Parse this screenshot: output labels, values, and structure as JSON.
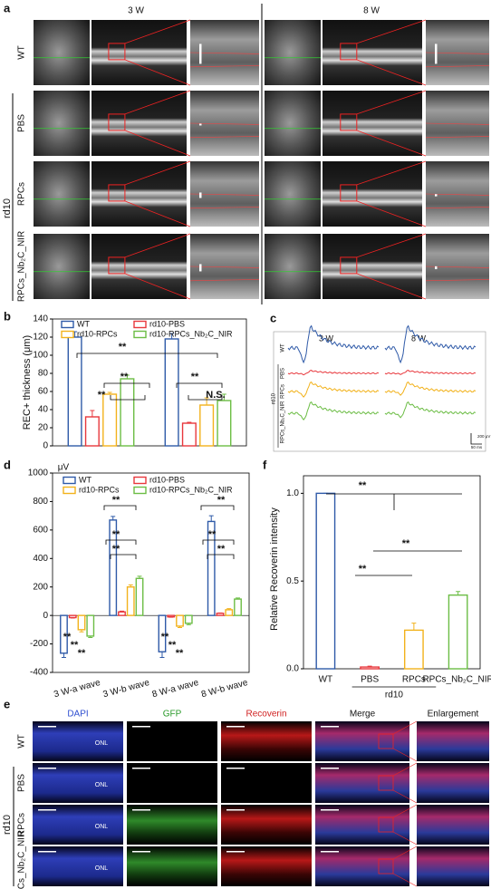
{
  "panels": {
    "labels": [
      "a",
      "b",
      "c",
      "d",
      "e",
      "f"
    ],
    "a": {
      "columns": [
        "3 W",
        "8 W"
      ],
      "rows": [
        "WT",
        "PBS",
        "RPCs",
        "RPCs_Nb₂C_NIR"
      ],
      "group": "rd10"
    },
    "c": {
      "columns": [
        "3 W",
        "8 W"
      ],
      "rows": [
        "WT",
        "PBS",
        "RPCs",
        "RPCs_Nb₂C_NIR"
      ],
      "group": "rd10",
      "scale_y": "200 μV",
      "scale_x": "50 ms"
    },
    "e": {
      "columns": [
        "DAPI",
        "GFP",
        "Recoverin",
        "Merge",
        "Enlargement"
      ],
      "rows": [
        "WT",
        "PBS",
        "RPCs",
        "RPCs_Nb₂C_NIR"
      ],
      "group": "rd10",
      "layer": "ONL"
    }
  },
  "chart_data": [
    {
      "type": "bar",
      "ylabel": "REC+ thickness (μm)",
      "categories": [
        null,
        null
      ],
      "ylim": [
        0,
        140
      ],
      "yticks": [
        0,
        20,
        40,
        60,
        80,
        100,
        120,
        140
      ],
      "legend": "top",
      "series": [
        {
          "name": "WT",
          "color": "#2f5aa8",
          "values": [
            120,
            118
          ],
          "errors": [
            6,
            6
          ]
        },
        {
          "name": "rd10-PBS",
          "color": "#e8383d",
          "values": [
            32,
            25
          ],
          "errors": [
            7,
            1
          ]
        },
        {
          "name": "rd10-RPCs",
          "color": "#f2b21c",
          "values": [
            57,
            45
          ],
          "errors": [
            2,
            8
          ]
        },
        {
          "name": "rd10-RPCs_Nb₂C_NIR",
          "color": "#6cbd45",
          "values": [
            74,
            50
          ],
          "errors": [
            4,
            7
          ]
        }
      ],
      "annotations": [
        "**",
        "**",
        "**",
        "**",
        "N.S."
      ]
    },
    {
      "type": "bar",
      "ylabel": "μV",
      "categories": [
        "3 W-a wave",
        "3 W-b wave",
        "8 W-a wave",
        "8 W-b wave"
      ],
      "ylim": [
        -400,
        1000
      ],
      "yticks": [
        -400,
        -200,
        0,
        200,
        400,
        600,
        800,
        1000
      ],
      "legend": "top",
      "series": [
        {
          "name": "WT",
          "color": "#2f5aa8",
          "values": [
            -265,
            670,
            -255,
            660
          ],
          "errors": [
            30,
            25,
            40,
            40
          ]
        },
        {
          "name": "rd10-PBS",
          "color": "#e8383d",
          "values": [
            -15,
            25,
            -10,
            15
          ],
          "errors": [
            3,
            5,
            3,
            3
          ]
        },
        {
          "name": "rd10-RPCs",
          "color": "#f2b21c",
          "values": [
            -100,
            200,
            -75,
            40
          ],
          "errors": [
            15,
            15,
            10,
            8
          ]
        },
        {
          "name": "rd10-RPCs_Nb₂C_NIR",
          "color": "#6cbd45",
          "values": [
            -145,
            260,
            -55,
            115
          ],
          "errors": [
            10,
            15,
            10,
            8
          ]
        }
      ],
      "annotations": [
        "**",
        "**",
        "**",
        "**",
        "**",
        "**",
        "**",
        "**",
        "**",
        "**",
        "**",
        "**"
      ]
    },
    {
      "type": "bar",
      "ylabel": "Relative Recoverin intensity",
      "categories": [
        "WT",
        "PBS",
        "RPCs",
        "RPCs_Nb₂C_NIR"
      ],
      "group_label": "rd10",
      "values": [
        1,
        0.01,
        0.22,
        0.42
      ],
      "errors": [
        0,
        0.005,
        0.04,
        0.02
      ],
      "colors": [
        "#2f5aa8",
        "#e8383d",
        "#f2b21c",
        "#6cbd45"
      ],
      "ylim": [
        0,
        1.1
      ],
      "yticks": [
        {
          "value": 0,
          "label": "0.0"
        },
        {
          "value": 0.5,
          "label": "0.5"
        },
        {
          "value": 1,
          "label": "1.0"
        }
      ],
      "annotations": [
        "**",
        "**",
        "**"
      ]
    }
  ]
}
